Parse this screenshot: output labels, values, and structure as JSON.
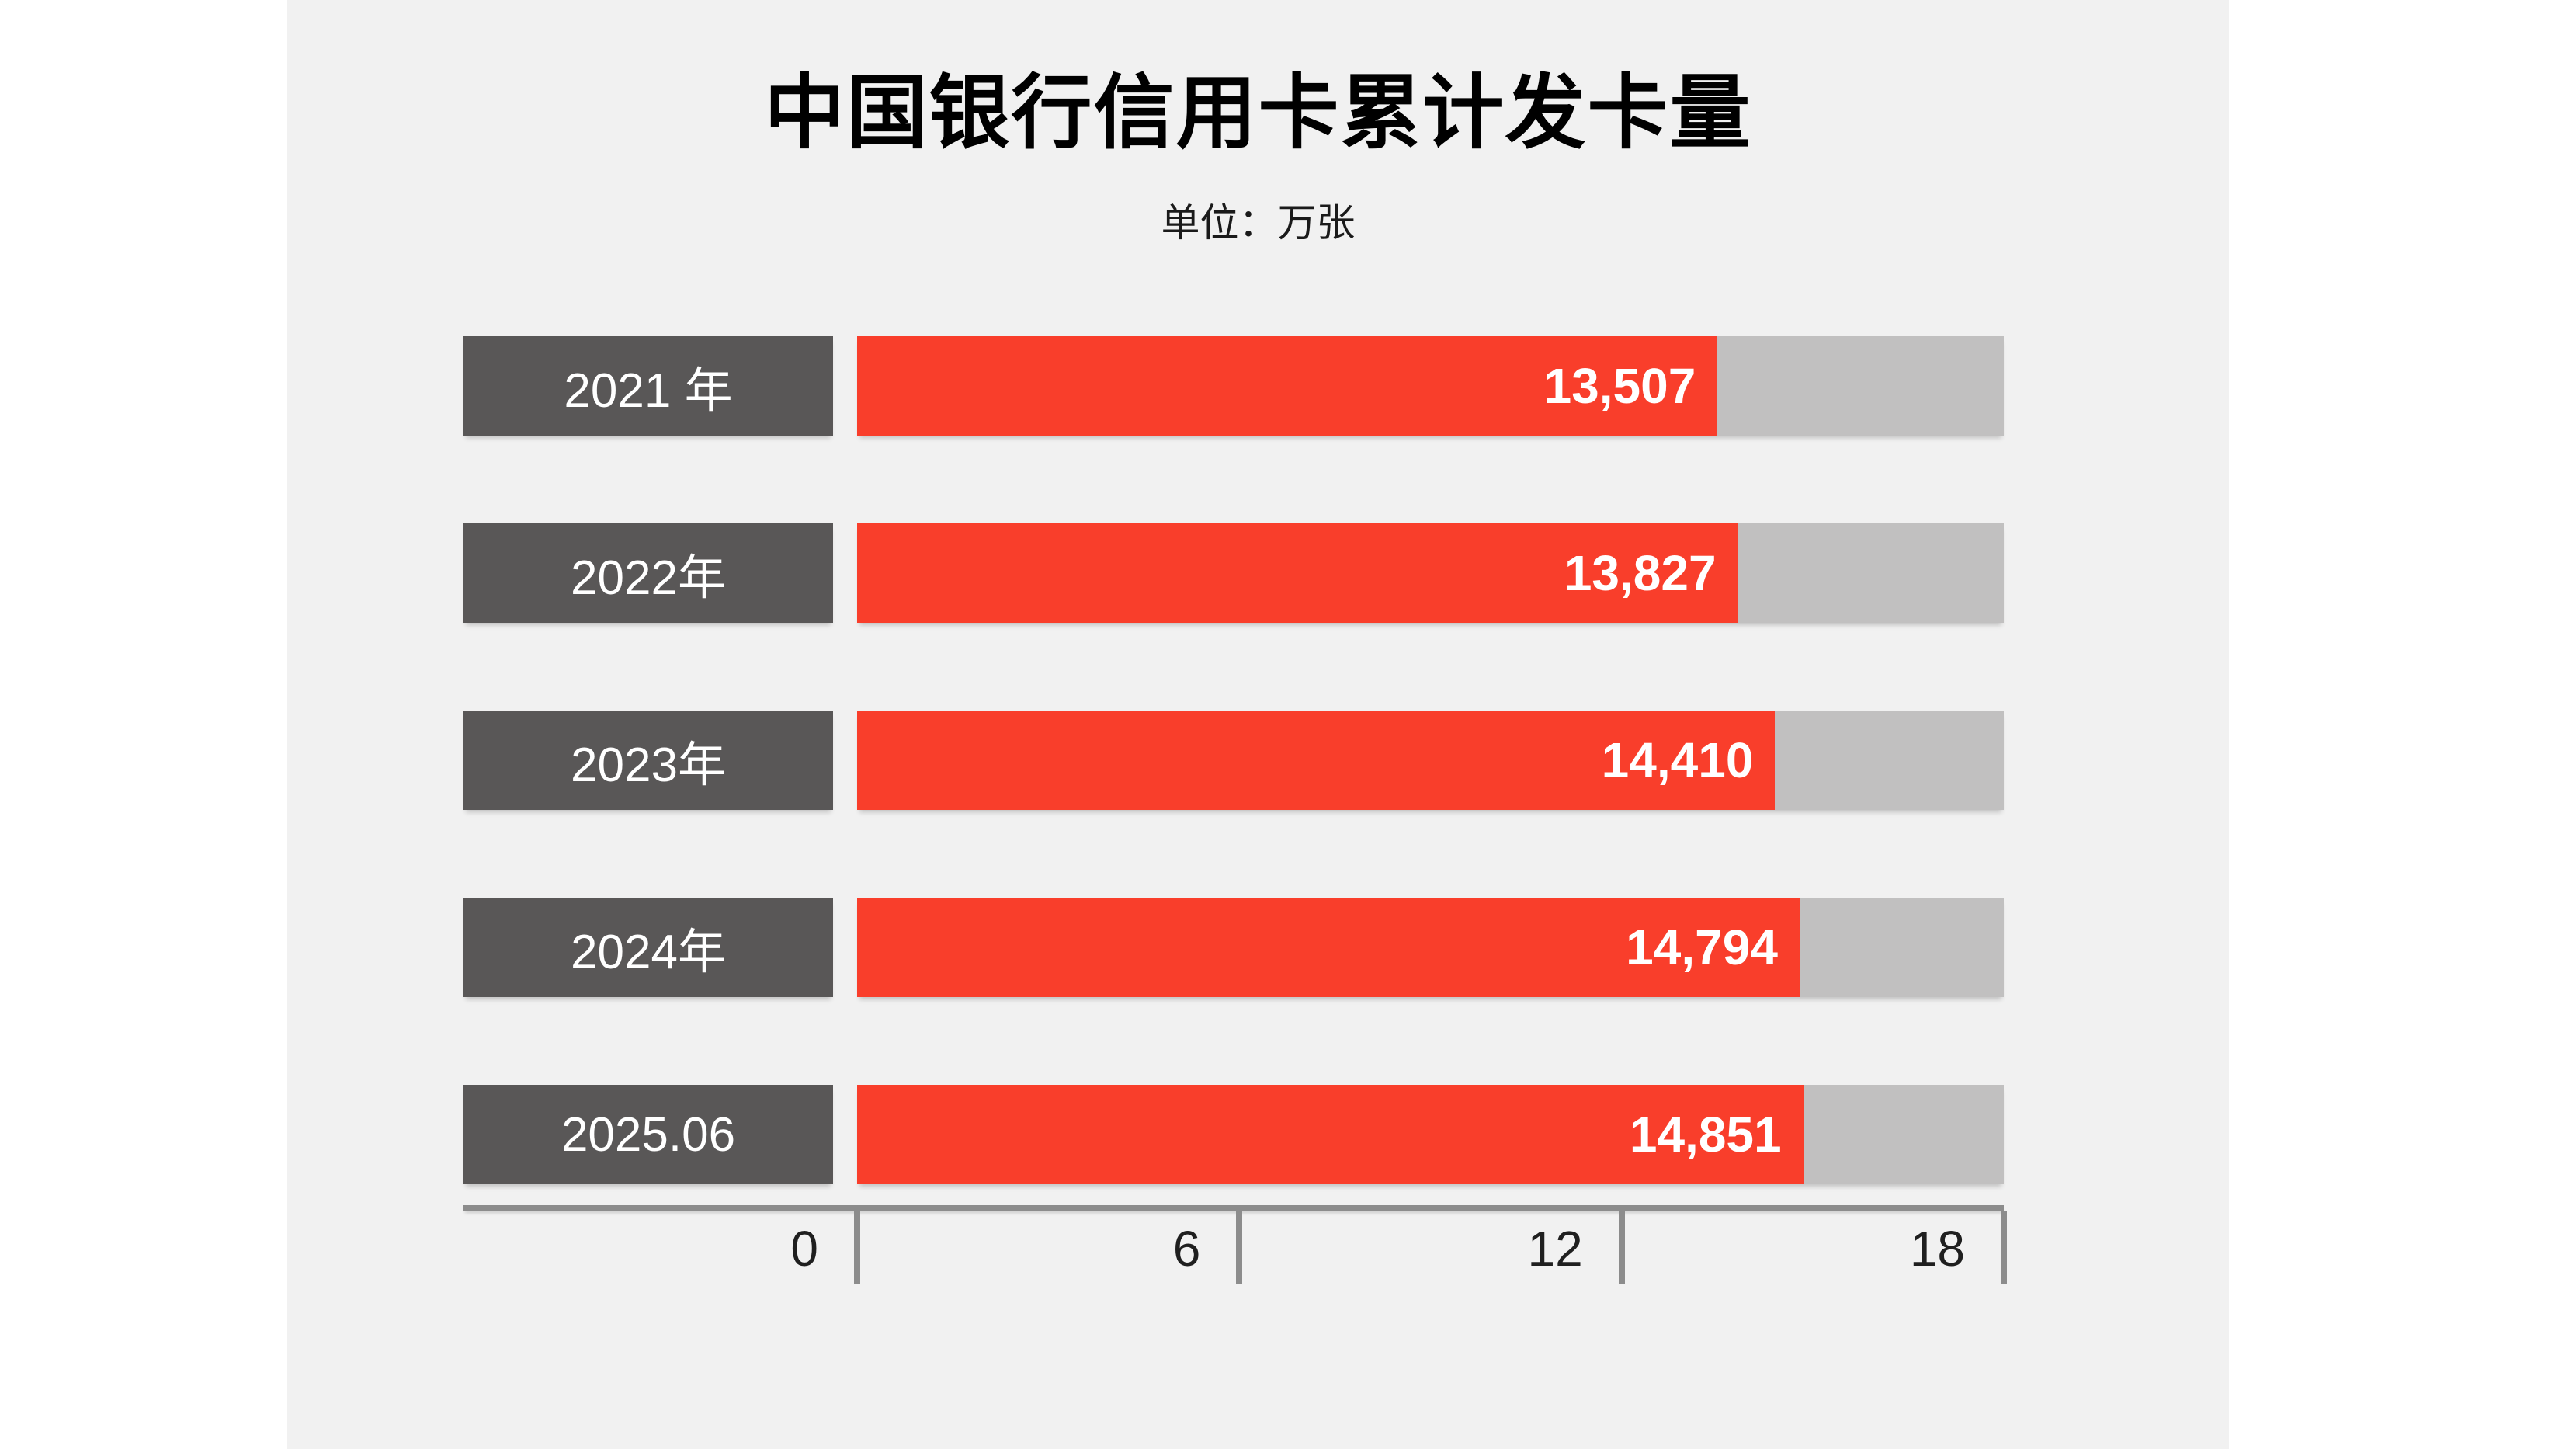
{
  "page": {
    "background": "#ffffff",
    "panel_background": "#f1f1f1"
  },
  "header": {
    "title": "中国银行信用卡累计发卡量",
    "unit_label": "单位：万张"
  },
  "chart_data": {
    "type": "bar",
    "orientation": "horizontal",
    "title": "中国银行信用卡累计发卡量",
    "unit_label": "单位：万张",
    "value_unit": "万张",
    "categories": [
      "2021 年",
      "2022年",
      "2023年",
      "2024年",
      "2025.06"
    ],
    "values": [
      13507,
      13827,
      14410,
      14794,
      14851
    ],
    "value_labels": [
      "13,507",
      "13,827",
      "14,410",
      "14,794",
      "14,851"
    ],
    "x_axis": {
      "tick_values": [
        0,
        6,
        12,
        18
      ],
      "tick_labels": [
        "0",
        "6",
        "12",
        "18"
      ],
      "value_divisor": 1000
    },
    "xlim": [
      0,
      18
    ],
    "grid": false,
    "legend": false,
    "colors": {
      "panel_background": "#f1f1f1",
      "bar_fill": "#f93e2b",
      "bar_track": "#c1c0c0",
      "category_box": "#595757",
      "axis_line": "#8c8c8c",
      "tick_label": "#1f1f1f",
      "bar_value_text": "#ffffff",
      "category_text": "#ffffff",
      "title_text": "#000000"
    }
  }
}
